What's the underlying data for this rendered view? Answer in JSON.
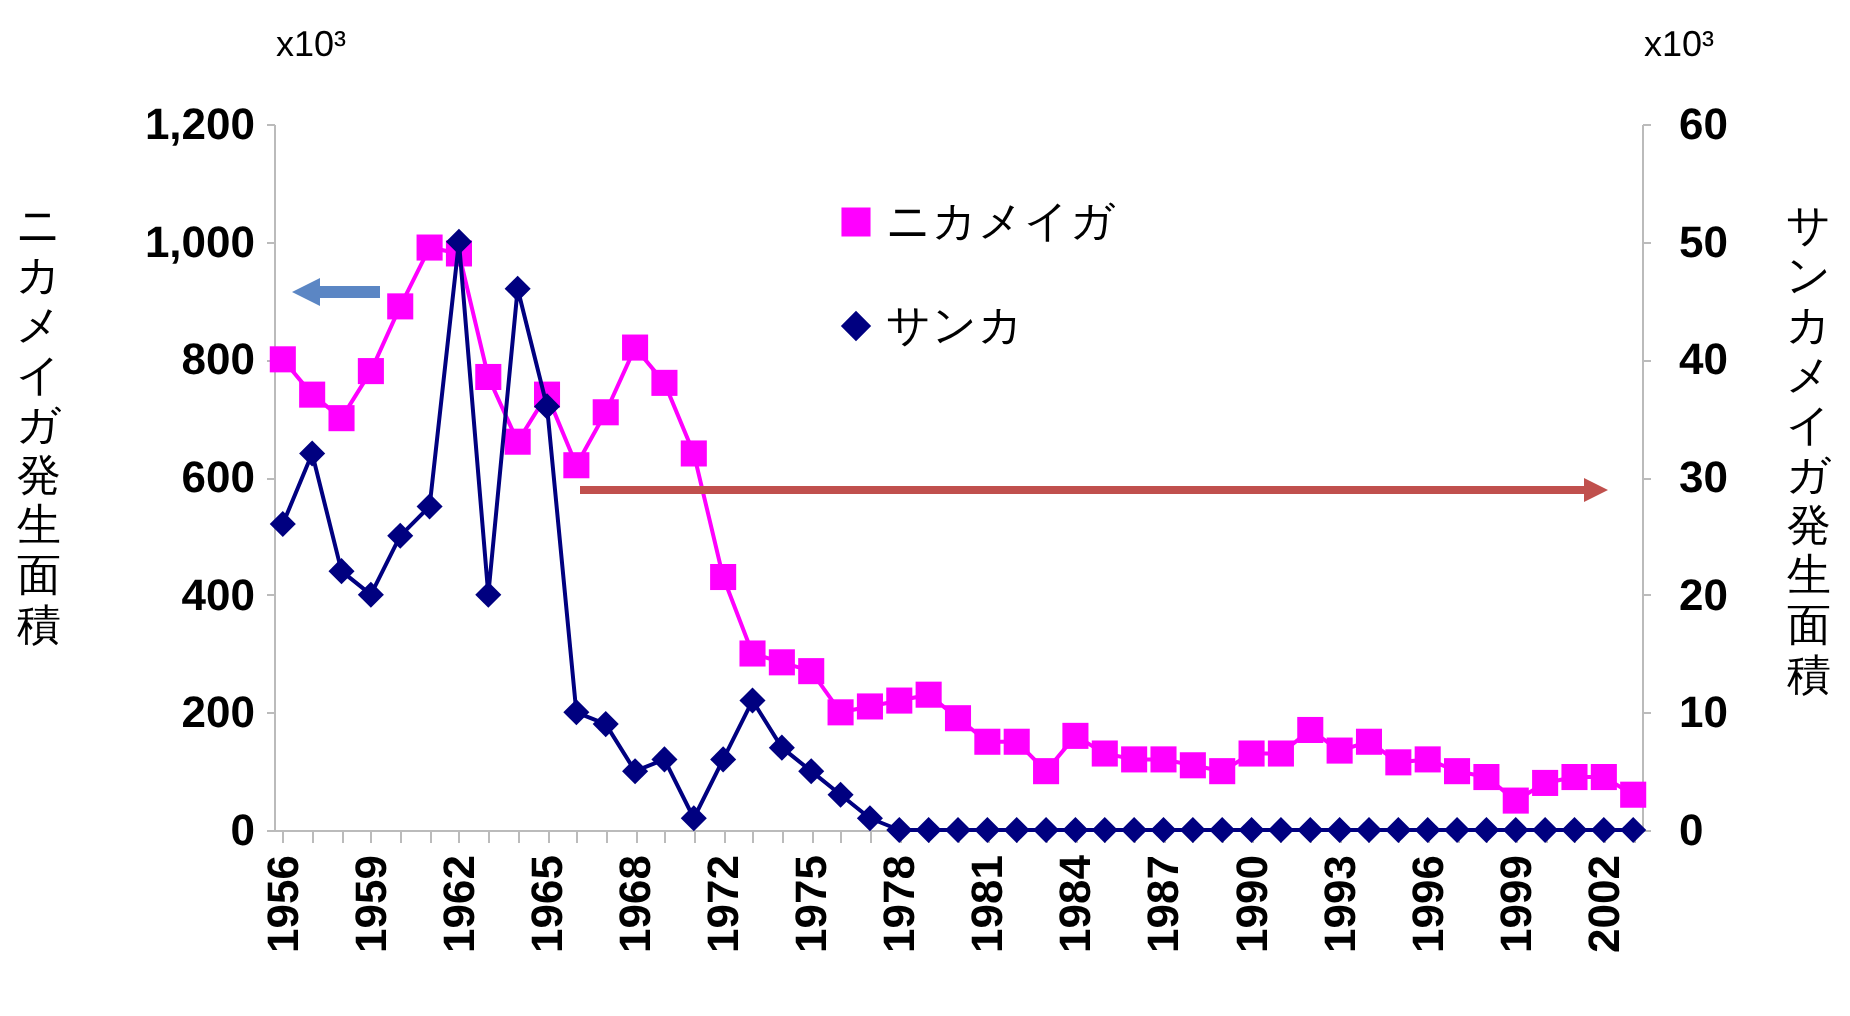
{
  "chart_data": {
    "type": "line",
    "ylabel": "ニカメイガ発生面積",
    "y2label": "サンカメイガ発生面積",
    "annotations": [
      "x10³",
      "x10³"
    ],
    "legend": "top",
    "line_style": "solid",
    "grid": false,
    "categories": [
      "1956",
      null,
      null,
      "1959",
      null,
      null,
      "1962",
      null,
      null,
      "1965",
      null,
      null,
      "1968",
      null,
      null,
      "1972",
      null,
      null,
      "1975",
      null,
      null,
      "1978",
      null,
      null,
      "1981",
      null,
      null,
      "1984",
      null,
      null,
      "1987",
      null,
      null,
      "1990",
      null,
      null,
      "1993",
      null,
      null,
      "1996",
      null,
      null,
      "1999",
      null,
      null,
      "2002",
      null
    ],
    "ylim": [
      0,
      1200
    ],
    "yticks": [
      0,
      200,
      400,
      600,
      800,
      {
        "value": 1000,
        "label": "1,000"
      },
      {
        "value": 1200,
        "label": "1,200"
      }
    ],
    "y2lim": [
      0,
      60
    ],
    "y2ticks": [
      0,
      10,
      20,
      30,
      40,
      50,
      60
    ],
    "series": [
      {
        "name": "ニカメイガ",
        "color": "#ff00ff",
        "marker": "square",
        "values": [
          800,
          740,
          700,
          780,
          890,
          990,
          980,
          770,
          660,
          740,
          620,
          710,
          820,
          760,
          640,
          430,
          300,
          285,
          270,
          200,
          210,
          220,
          230,
          190,
          150,
          150,
          100,
          160,
          130,
          120,
          120,
          110,
          100,
          130,
          130,
          170,
          135,
          150,
          115,
          120,
          100,
          90,
          50,
          80,
          90,
          90,
          60
        ]
      },
      {
        "name": "サンカ",
        "color": "#000080",
        "marker": "diamond",
        "axis": "y2",
        "values": [
          26,
          32,
          22,
          20,
          25,
          27.5,
          50,
          20,
          46,
          36,
          10,
          9,
          5,
          6,
          1,
          6,
          11,
          7,
          5,
          3,
          1,
          0,
          0,
          0,
          0,
          0,
          0,
          0,
          0,
          0,
          0,
          0,
          0,
          0,
          0,
          0,
          0,
          0,
          0,
          0,
          0,
          0,
          0,
          0,
          0,
          0,
          0
        ]
      }
    ]
  }
}
